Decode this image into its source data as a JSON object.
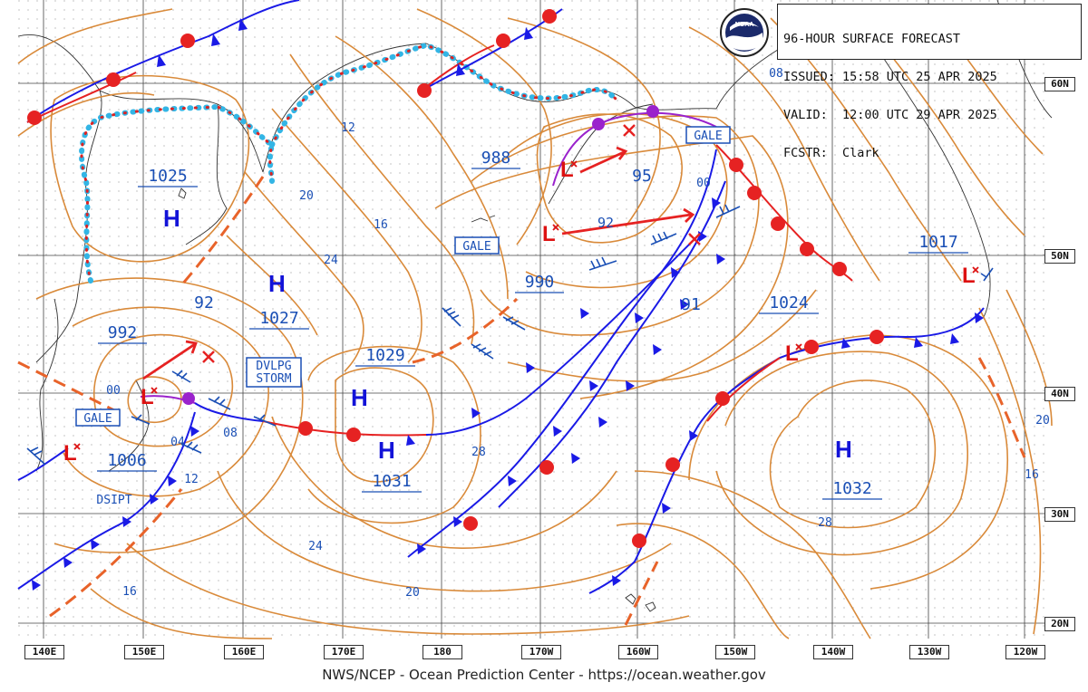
{
  "header": {
    "line1": "96-HOUR SURFACE FORECAST",
    "line2": "ISSUED: 15:58 UTC 25 APR 2025",
    "line3": "VALID:  12:00 UTC 29 APR 2025",
    "line4": "FCSTR:  Clark"
  },
  "footer": "NWS/NCEP - Ocean Prediction Center - https://ocean.weather.gov",
  "logo_text": "NOAA",
  "latitudes": [
    "60N",
    "50N",
    "40N",
    "30N",
    "20N"
  ],
  "longitudes": [
    "140E",
    "150E",
    "160E",
    "170E",
    "180",
    "170W",
    "160W",
    "150W",
    "140W",
    "130W",
    "120W"
  ],
  "pressure_centers": [
    {
      "type": "H",
      "value": "1025"
    },
    {
      "type": "H",
      "value": "1027"
    },
    {
      "type": "H",
      "value": "1029"
    },
    {
      "type": "H",
      "value": "1031"
    },
    {
      "type": "H",
      "value": "1032"
    },
    {
      "type": "L",
      "value": "988"
    },
    {
      "type": "L",
      "value": "990"
    },
    {
      "type": "L",
      "value": "992"
    },
    {
      "type": "L",
      "value": "1006"
    },
    {
      "type": "L",
      "value": "1017"
    },
    {
      "type": "",
      "value": "1024"
    }
  ],
  "isobar_labels": [
    "12",
    "20",
    "16",
    "24",
    "08",
    "00",
    "92",
    "95",
    "91",
    "92",
    "00",
    "04",
    "08",
    "12",
    "28",
    "24",
    "20",
    "16",
    "28",
    "20",
    "16"
  ],
  "warnings": [
    "GALE",
    "GALE",
    "GALE",
    "DVLPG",
    "STORM",
    "DSIPT"
  ],
  "colors": {
    "isobar": "#d98a3a",
    "cold_front": "#1a1ae6",
    "warm_front": "#e62222",
    "occluded_front": "#9a22cc",
    "trough": "#e8632a",
    "ice_edge": "#33b5e5",
    "label_text": "#1a4fb5",
    "high": "#1313d8",
    "low": "#dd1111",
    "grid": "#555555"
  }
}
